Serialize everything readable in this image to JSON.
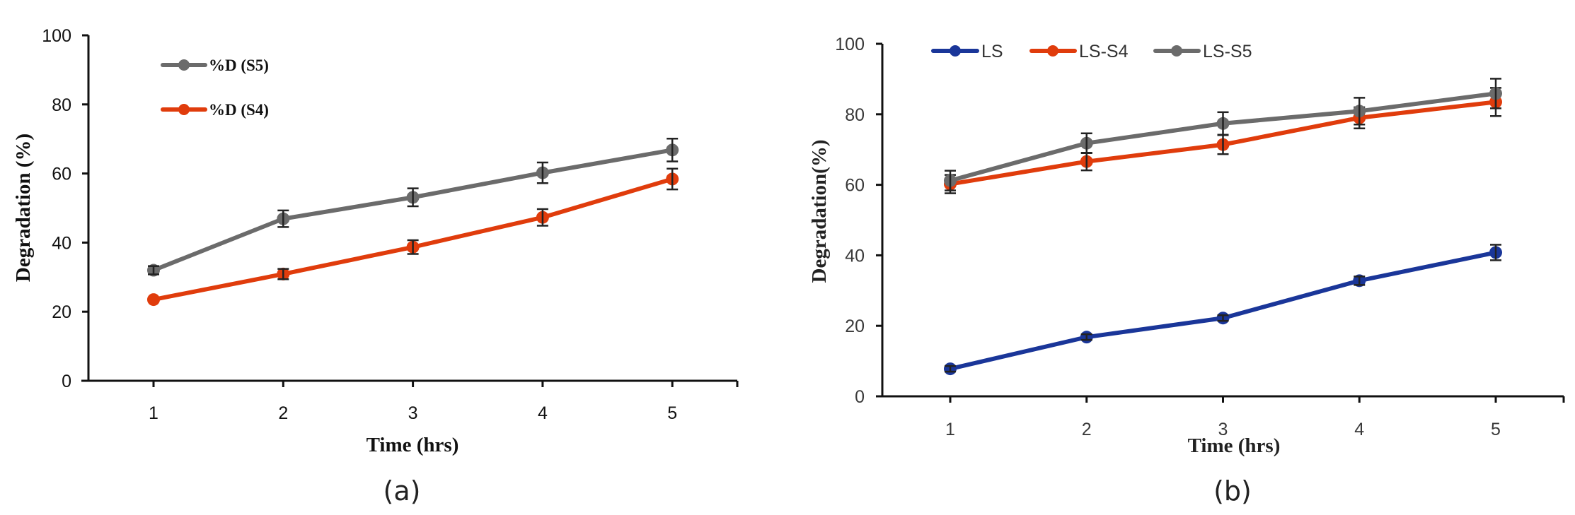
{
  "chart_data": [
    {
      "type": "line",
      "panel_label": "(a)",
      "title": "",
      "xlabel": "Time (hrs)",
      "ylabel": "Degradation (%)",
      "x": [
        1,
        2,
        3,
        4,
        5
      ],
      "x_tick_labels": [
        "1",
        "2",
        "3",
        "4",
        "5"
      ],
      "y_tick_labels": [
        "0",
        "20",
        "40",
        "60",
        "80",
        "100"
      ],
      "y_ticks": [
        0,
        20,
        40,
        60,
        80,
        100
      ],
      "xlim": [
        0.5,
        5.5
      ],
      "ylim": [
        0,
        100
      ],
      "grid": false,
      "legend_position": "top-left",
      "series": [
        {
          "name": "%D (S5)",
          "color": "#6b6b6b",
          "values": [
            32.0,
            46.9,
            53.1,
            60.2,
            66.8
          ],
          "errors": [
            1.2,
            2.4,
            2.6,
            3.0,
            3.3
          ]
        },
        {
          "name": "%D (S4)",
          "color": "#e03c0c",
          "values": [
            23.5,
            30.9,
            38.7,
            47.3,
            58.4
          ],
          "errors": [
            0.5,
            1.5,
            2.0,
            2.4,
            3.0
          ]
        }
      ]
    },
    {
      "type": "line",
      "panel_label": "(b)",
      "title": "",
      "xlabel": "Time (hrs)",
      "ylabel": "Degradation(%)",
      "x": [
        1,
        2,
        3,
        4,
        5
      ],
      "x_tick_labels": [
        "1",
        "2",
        "3",
        "4",
        "5"
      ],
      "y_tick_labels": [
        "0",
        "20",
        "40",
        "60",
        "80",
        "100"
      ],
      "y_ticks": [
        0,
        20,
        40,
        60,
        80,
        100
      ],
      "xlim": [
        0.5,
        5.5
      ],
      "ylim": [
        0,
        100
      ],
      "grid": false,
      "legend_position": "top",
      "series": [
        {
          "name": "LS",
          "color": "#1a3699",
          "values": [
            7.8,
            16.8,
            22.2,
            32.8,
            40.8
          ],
          "errors": [
            0.8,
            0.8,
            0.8,
            1.2,
            2.2
          ]
        },
        {
          "name": "LS-S4",
          "color": "#e03c0c",
          "values": [
            60.2,
            66.6,
            71.4,
            79.0,
            83.5
          ],
          "errors": [
            2.6,
            2.5,
            2.7,
            3.0,
            4.0
          ]
        },
        {
          "name": "LS-S5",
          "color": "#6b6b6b",
          "values": [
            61.2,
            71.8,
            77.4,
            80.9,
            85.9
          ],
          "errors": [
            2.8,
            2.8,
            3.2,
            3.8,
            4.2
          ]
        }
      ]
    }
  ]
}
